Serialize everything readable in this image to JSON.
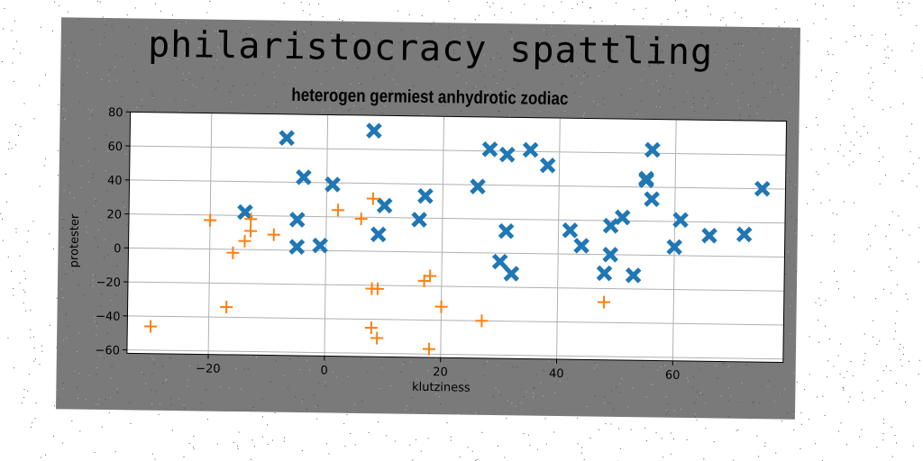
{
  "chart_data": {
    "type": "scatter",
    "title": "philaristocracy spattling",
    "subtitle": "heterogen germiest anhydrotic zodiac",
    "xlabel": "klutziness",
    "ylabel": "protester",
    "xlim": [
      -34,
      79
    ],
    "ylim": [
      -62,
      80
    ],
    "xticks": [
      -20,
      0,
      20,
      40,
      60
    ],
    "yticks": [
      -60,
      -40,
      -20,
      0,
      20,
      40,
      60,
      80
    ],
    "grid": true,
    "series": [
      {
        "marker": "X",
        "color": "#1f77b4",
        "x": [
          -7,
          8,
          -4,
          1,
          -14,
          -5,
          -5,
          -1,
          10,
          9,
          16,
          17,
          26,
          28,
          31,
          35,
          38,
          31,
          30,
          32,
          42,
          44,
          49,
          49,
          48,
          51,
          53,
          55,
          55,
          56,
          56,
          61,
          60,
          66,
          72,
          75
        ],
        "y": [
          66,
          71,
          43,
          39,
          22,
          18,
          2,
          3,
          27,
          10,
          19,
          33,
          39,
          61,
          58,
          61,
          52,
          13,
          -5,
          -12,
          14,
          5,
          17,
          0,
          -11,
          22,
          -12,
          44,
          45,
          33,
          62,
          21,
          5,
          12,
          13,
          40
        ]
      },
      {
        "marker": "+",
        "color": "#ff7f0e",
        "x": [
          -30,
          -20,
          -17,
          -16,
          -14,
          -13,
          -13,
          -9,
          2,
          6,
          8,
          8,
          9,
          8,
          9,
          17,
          18,
          18,
          20,
          27,
          48
        ],
        "y": [
          -46,
          17,
          -34,
          -2,
          5,
          11,
          18,
          9,
          24,
          19,
          31,
          -45,
          -51,
          -22,
          -22,
          -17,
          -14,
          -57,
          -32,
          -40,
          -28
        ]
      }
    ]
  }
}
